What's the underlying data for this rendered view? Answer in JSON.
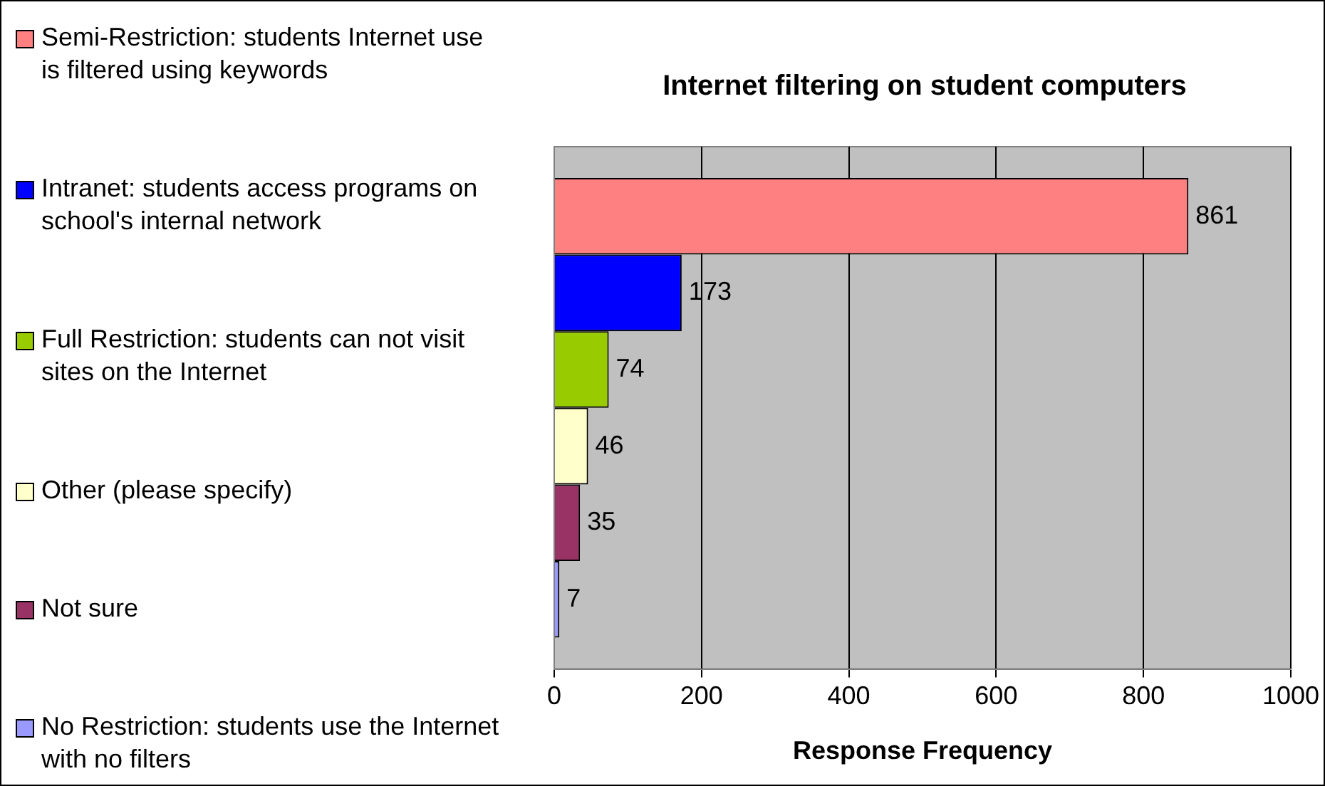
{
  "chart_data": {
    "type": "bar",
    "orientation": "horizontal",
    "title": "Internet filtering on student computers",
    "xlabel": "Response Frequency",
    "categories": [
      null
    ],
    "series": [
      {
        "name": "Semi-Restriction:  students Internet use is filtered using keywords",
        "color": "#ff8080",
        "values": [
          861
        ]
      },
      {
        "name": "Intranet:  students access programs on school's internal network",
        "color": "#0000ff",
        "values": [
          173
        ]
      },
      {
        "name": "Full Restriction:   students can not visit sites on the Internet",
        "color": "#99cc00",
        "values": [
          74
        ]
      },
      {
        "name": "Other (please specify)",
        "color": "#ffffcc",
        "values": [
          46
        ]
      },
      {
        "name": "Not sure",
        "color": "#993366",
        "values": [
          35
        ]
      },
      {
        "name": "No Restriction:  students use the Internet with no filters",
        "color": "#9999ff",
        "values": [
          7
        ]
      }
    ],
    "xlim": [
      0,
      1000
    ],
    "xticks": [
      0,
      200,
      400,
      600,
      800,
      1000
    ],
    "grid": "x",
    "legend": "left",
    "data_labels": true
  }
}
